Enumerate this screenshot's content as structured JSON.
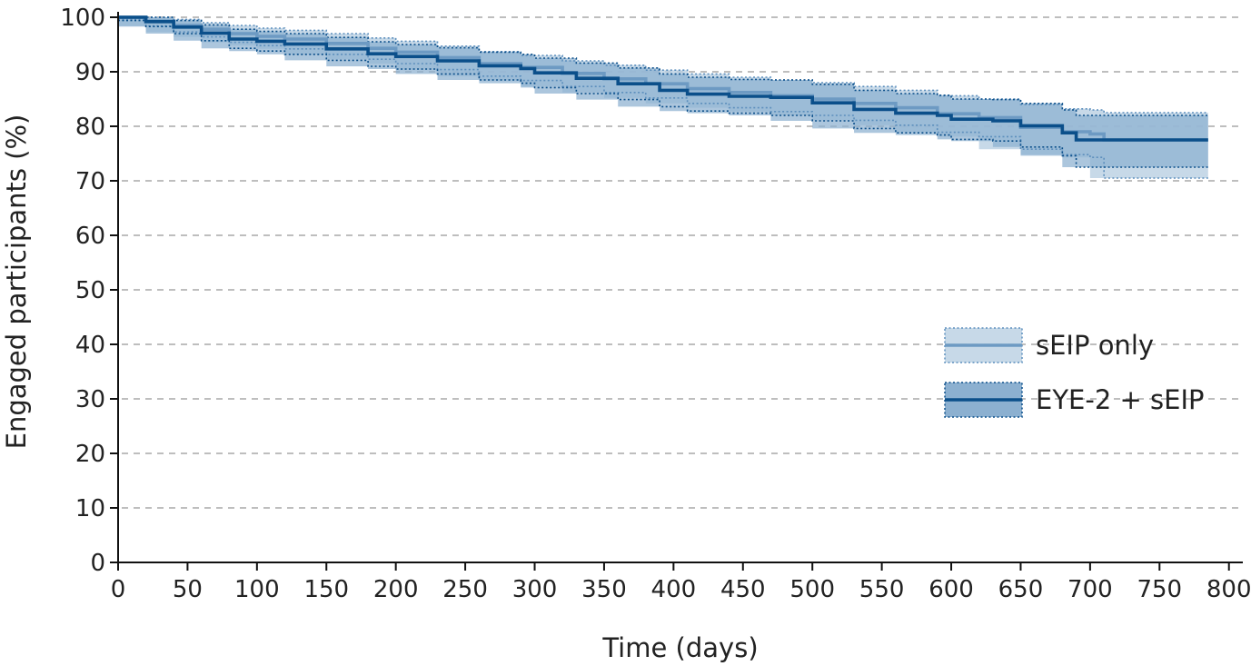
{
  "chart_data": {
    "type": "line",
    "xlabel": "Time (days)",
    "ylabel": "Engaged participants (%)",
    "xlim": [
      0,
      810
    ],
    "ylim": [
      0,
      100
    ],
    "xticks": [
      0,
      50,
      100,
      150,
      200,
      250,
      300,
      350,
      400,
      450,
      500,
      550,
      600,
      650,
      700,
      750,
      800
    ],
    "yticks": [
      0,
      10,
      20,
      30,
      40,
      50,
      60,
      70,
      80,
      90,
      100
    ],
    "grid": "horizontal-dashed",
    "legend_position": "right-middle",
    "series": [
      {
        "name": "sEIP only",
        "color": "#6d9ac3",
        "band_color": "#b9d0e2",
        "points": [
          [
            0,
            100
          ],
          [
            20,
            99.3
          ],
          [
            40,
            98.5
          ],
          [
            60,
            97.8
          ],
          [
            80,
            97
          ],
          [
            100,
            96.5
          ],
          [
            120,
            96
          ],
          [
            150,
            95.2
          ],
          [
            180,
            94.3
          ],
          [
            200,
            93.6
          ],
          [
            230,
            92.6
          ],
          [
            260,
            91.5
          ],
          [
            290,
            90.8
          ],
          [
            320,
            89.7
          ],
          [
            350,
            88.7
          ],
          [
            380,
            87.8
          ],
          [
            410,
            86.9
          ],
          [
            440,
            86.2
          ],
          [
            470,
            85.6
          ],
          [
            500,
            85
          ],
          [
            530,
            84.2
          ],
          [
            560,
            83.4
          ],
          [
            590,
            82.3
          ],
          [
            620,
            81.6
          ],
          [
            650,
            79.8
          ],
          [
            680,
            79
          ],
          [
            700,
            78.6
          ],
          [
            710,
            77.5
          ],
          [
            785,
            77.5
          ]
        ],
        "ci_upper": [
          [
            0,
            100
          ],
          [
            20,
            100
          ],
          [
            40,
            99.6
          ],
          [
            60,
            99
          ],
          [
            80,
            98.5
          ],
          [
            100,
            98
          ],
          [
            120,
            97.6
          ],
          [
            150,
            97
          ],
          [
            180,
            96.2
          ],
          [
            200,
            95.6
          ],
          [
            230,
            94.7
          ],
          [
            260,
            93.7
          ],
          [
            290,
            93
          ],
          [
            320,
            92
          ],
          [
            350,
            91.2
          ],
          [
            380,
            90.3
          ],
          [
            410,
            89.6
          ],
          [
            440,
            89
          ],
          [
            470,
            88.5
          ],
          [
            500,
            88
          ],
          [
            530,
            87.3
          ],
          [
            560,
            86.6
          ],
          [
            590,
            85.6
          ],
          [
            620,
            85
          ],
          [
            650,
            84
          ],
          [
            680,
            83.2
          ],
          [
            700,
            83
          ],
          [
            710,
            82.5
          ],
          [
            785,
            82.5
          ]
        ],
        "ci_lower": [
          [
            0,
            99.6
          ],
          [
            20,
            98.4
          ],
          [
            40,
            97.3
          ],
          [
            60,
            96.4
          ],
          [
            80,
            95.4
          ],
          [
            100,
            94.8
          ],
          [
            120,
            94.2
          ],
          [
            150,
            93.2
          ],
          [
            180,
            92.3
          ],
          [
            200,
            91.5
          ],
          [
            230,
            90.4
          ],
          [
            260,
            89.2
          ],
          [
            290,
            88.4
          ],
          [
            320,
            87.3
          ],
          [
            350,
            86.2
          ],
          [
            380,
            85.2
          ],
          [
            410,
            84.2
          ],
          [
            440,
            83.4
          ],
          [
            470,
            82.7
          ],
          [
            500,
            82
          ],
          [
            530,
            81.1
          ],
          [
            560,
            80.2
          ],
          [
            590,
            78.9
          ],
          [
            620,
            78.1
          ],
          [
            650,
            75.8
          ],
          [
            680,
            74.8
          ],
          [
            700,
            74.3
          ],
          [
            710,
            70.5
          ],
          [
            785,
            70.5
          ]
        ]
      },
      {
        "name": "EYE-2 + sEIP",
        "color": "#0b4f8a",
        "band_color": "#8cb0d0",
        "points": [
          [
            0,
            100
          ],
          [
            20,
            99.2
          ],
          [
            40,
            98.2
          ],
          [
            60,
            97.1
          ],
          [
            80,
            96
          ],
          [
            100,
            95.6
          ],
          [
            120,
            95.1
          ],
          [
            150,
            94.2
          ],
          [
            180,
            93.3
          ],
          [
            200,
            92.8
          ],
          [
            230,
            92
          ],
          [
            260,
            91.1
          ],
          [
            290,
            90.6
          ],
          [
            300,
            89.8
          ],
          [
            330,
            88.8
          ],
          [
            360,
            87.8
          ],
          [
            390,
            86.6
          ],
          [
            410,
            85.9
          ],
          [
            440,
            85.5
          ],
          [
            470,
            85.3
          ],
          [
            500,
            84.3
          ],
          [
            530,
            83.1
          ],
          [
            560,
            82.4
          ],
          [
            590,
            82
          ],
          [
            600,
            81.3
          ],
          [
            630,
            81
          ],
          [
            650,
            80.1
          ],
          [
            680,
            78.8
          ],
          [
            690,
            77.5
          ],
          [
            785,
            77.5
          ]
        ],
        "ci_upper": [
          [
            0,
            100
          ],
          [
            20,
            100
          ],
          [
            40,
            99.4
          ],
          [
            60,
            98.6
          ],
          [
            80,
            97.8
          ],
          [
            100,
            97.4
          ],
          [
            120,
            97
          ],
          [
            150,
            96.3
          ],
          [
            180,
            95.5
          ],
          [
            200,
            95
          ],
          [
            230,
            94.4
          ],
          [
            260,
            93.6
          ],
          [
            290,
            93.2
          ],
          [
            300,
            92.5
          ],
          [
            330,
            91.6
          ],
          [
            360,
            90.7
          ],
          [
            390,
            89.6
          ],
          [
            410,
            89
          ],
          [
            440,
            88.6
          ],
          [
            470,
            88.5
          ],
          [
            500,
            87.7
          ],
          [
            530,
            86.6
          ],
          [
            560,
            86
          ],
          [
            590,
            85.7
          ],
          [
            600,
            85
          ],
          [
            630,
            84.9
          ],
          [
            650,
            84.2
          ],
          [
            680,
            83
          ],
          [
            690,
            82
          ],
          [
            785,
            82
          ]
        ],
        "ci_lower": [
          [
            0,
            99.4
          ],
          [
            20,
            98.3
          ],
          [
            40,
            97
          ],
          [
            60,
            95.7
          ],
          [
            80,
            94.3
          ],
          [
            100,
            93.8
          ],
          [
            120,
            93.2
          ],
          [
            150,
            92.1
          ],
          [
            180,
            91
          ],
          [
            200,
            90.5
          ],
          [
            230,
            89.6
          ],
          [
            260,
            88.5
          ],
          [
            290,
            87.9
          ],
          [
            300,
            87.1
          ],
          [
            330,
            86
          ],
          [
            360,
            84.9
          ],
          [
            390,
            83.6
          ],
          [
            410,
            82.8
          ],
          [
            440,
            82.4
          ],
          [
            470,
            82
          ],
          [
            500,
            81
          ],
          [
            530,
            79.6
          ],
          [
            560,
            78.8
          ],
          [
            590,
            78.4
          ],
          [
            600,
            77.6
          ],
          [
            630,
            77.3
          ],
          [
            650,
            76.2
          ],
          [
            680,
            74.6
          ],
          [
            690,
            72.5
          ],
          [
            785,
            72.5
          ]
        ]
      }
    ]
  }
}
